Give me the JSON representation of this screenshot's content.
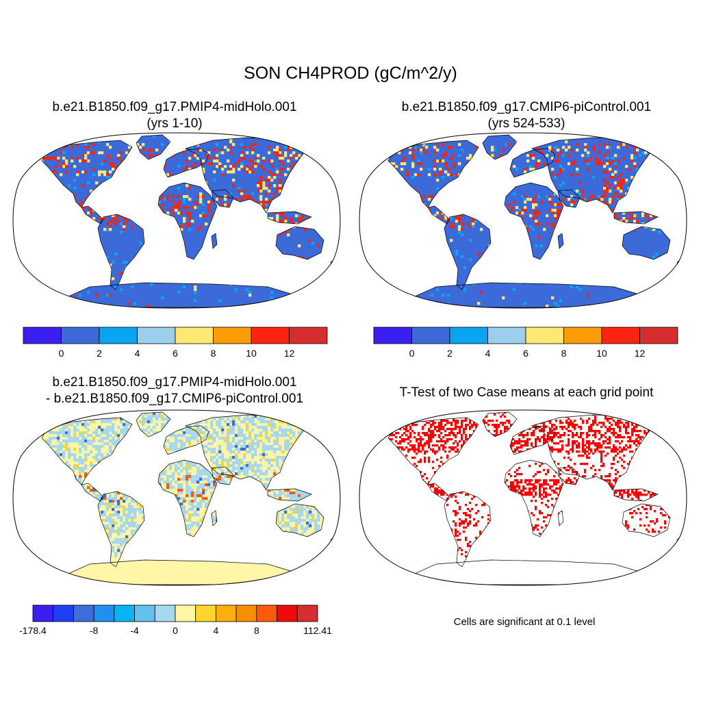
{
  "main_title": "SON CH4PROD (gC/m^2/y)",
  "panels": {
    "top_left": {
      "title_line1": "b.e21.B1850.f09_g17.PMIP4-midHolo.001",
      "title_line2": "(yrs 1-10)"
    },
    "top_right": {
      "title_line1": "b.e21.B1850.f09_g17.CMIP6-piControl.001",
      "title_line2": "(yrs 524-533)"
    },
    "bottom_left": {
      "title_line1": "b.e21.B1850.f09_g17.PMIP4-midHolo.001",
      "title_line2": "- b.e21.B1850.f09_g17.CMIP6-piControl.001"
    },
    "bottom_right": {
      "title_line1": "T-Test of two Case means at each grid point",
      "note": "Cells are significant at 0.1 level"
    }
  },
  "colorbar_top": {
    "colors": [
      "#3b1ff0",
      "#3c6ad9",
      "#0aa5f2",
      "#9ccfec",
      "#fce873",
      "#fd9c09",
      "#ff2410",
      "#d62e2e"
    ],
    "labels": [
      "0",
      "2",
      "4",
      "6",
      "8",
      "10",
      "12"
    ]
  },
  "colorbar_diff": {
    "colors": [
      "#3b1ff0",
      "#1f3ff2",
      "#3e6ed9",
      "#1f8ff0",
      "#0ab3f2",
      "#64c1ec",
      "#a7d8ef",
      "#fff6a8",
      "#fcd62c",
      "#fbb00f",
      "#fb8d04",
      "#fe5a09",
      "#ef0b0b",
      "#d62e2e"
    ],
    "labels": [
      "-178.4",
      "-8",
      "-4",
      "0",
      "4",
      "8",
      "112.41"
    ]
  },
  "map_colors": {
    "land_top": "#3c6ad9",
    "land_diff": "#fff6a8",
    "significant": "#ff0000",
    "hot_top": "#ff2410",
    "warm_top": "#fce873",
    "cool_diff": "#a7d8ef",
    "neg_diff": "#3e6ed9",
    "pos_diff": "#fe5a09"
  }
}
